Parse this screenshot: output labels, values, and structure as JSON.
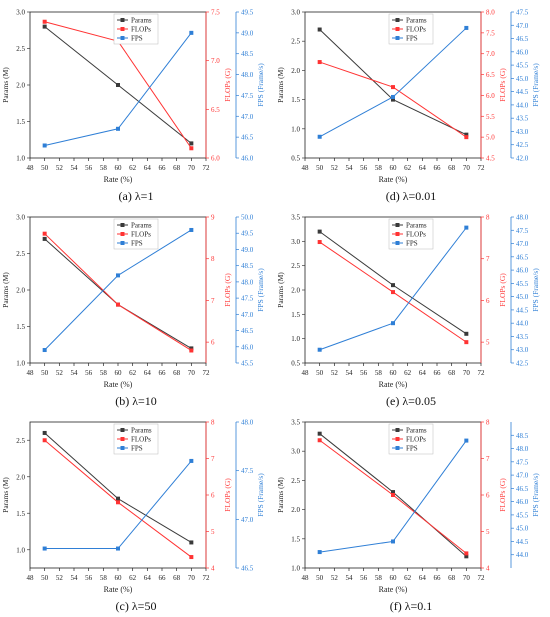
{
  "colors": {
    "params": "#3a3a3a",
    "flops": "#ff3333",
    "fps": "#2f7fd6"
  },
  "chart_data": [
    {
      "type": "line",
      "caption": "(a) λ=1",
      "xlabel": "Rate (%)",
      "x_ticks": [
        48,
        50,
        52,
        54,
        56,
        58,
        60,
        62,
        64,
        66,
        68,
        70,
        72
      ],
      "xlim": [
        48,
        72
      ],
      "axes": [
        {
          "label": "Params (M)",
          "side": "left",
          "color": "params",
          "ylim": [
            1.0,
            3.0
          ],
          "ticks": [
            "1.0",
            "1.5",
            "2.0",
            "2.5",
            "3.0"
          ]
        },
        {
          "label": "FLOPs (G)",
          "side": "right",
          "color": "flops",
          "ylim": [
            6.0,
            7.5
          ],
          "ticks": [
            "6.0",
            "6.5",
            "7.0",
            "7.5"
          ]
        },
        {
          "label": "FPS (Frame/s)",
          "side": "far-right",
          "color": "fps",
          "ylim": [
            46.0,
            49.5
          ],
          "ticks": [
            "46.0",
            "46.5",
            "47.0",
            "47.5",
            "48.0",
            "48.5",
            "49.0",
            "49.5"
          ]
        }
      ],
      "series": [
        {
          "name": "Params",
          "axis": 0,
          "x": [
            50,
            60,
            70
          ],
          "y": [
            2.8,
            2.0,
            1.2
          ]
        },
        {
          "name": "FLOPs",
          "axis": 1,
          "x": [
            50,
            60,
            70
          ],
          "y": [
            7.4,
            7.2,
            6.1
          ]
        },
        {
          "name": "FPS",
          "axis": 2,
          "x": [
            50,
            60,
            70
          ],
          "y": [
            46.3,
            46.7,
            49.0
          ]
        }
      ],
      "legend": "top-center"
    },
    {
      "type": "line",
      "caption": "(d) λ=0.01",
      "xlabel": "Rate (%)",
      "x_ticks": [
        48,
        50,
        52,
        54,
        56,
        58,
        60,
        62,
        64,
        66,
        68,
        70,
        72
      ],
      "xlim": [
        48,
        72
      ],
      "axes": [
        {
          "label": "Params (M)",
          "side": "left",
          "color": "params",
          "ylim": [
            0.5,
            3.0
          ],
          "ticks": [
            "0.5",
            "1.0",
            "1.5",
            "2.0",
            "2.5",
            "3.0"
          ]
        },
        {
          "label": "FLOPs (G)",
          "side": "right",
          "color": "flops",
          "ylim": [
            4.5,
            8.0
          ],
          "ticks": [
            "4.5",
            "5.0",
            "5.5",
            "6.0",
            "6.5",
            "7.0",
            "7.5",
            "8.0"
          ]
        },
        {
          "label": "FPS (Frame/s)",
          "side": "far-right",
          "color": "fps",
          "ylim": [
            42.0,
            47.5
          ],
          "ticks": [
            "42.0",
            "42.5",
            "43.0",
            "43.5",
            "44.0",
            "44.5",
            "45.0",
            "45.5",
            "46.0",
            "46.5",
            "47.0",
            "47.5"
          ]
        }
      ],
      "series": [
        {
          "name": "Params",
          "axis": 0,
          "x": [
            50,
            60,
            70
          ],
          "y": [
            2.7,
            1.5,
            0.9
          ]
        },
        {
          "name": "FLOPs",
          "axis": 1,
          "x": [
            50,
            60,
            70
          ],
          "y": [
            6.8,
            6.2,
            5.0
          ]
        },
        {
          "name": "FPS",
          "axis": 2,
          "x": [
            50,
            60,
            70
          ],
          "y": [
            42.8,
            44.3,
            46.9
          ]
        }
      ],
      "legend": "top-center"
    },
    {
      "type": "line",
      "caption": "(b) λ=10",
      "xlabel": "Rate (%)",
      "x_ticks": [
        48,
        50,
        52,
        54,
        56,
        58,
        60,
        62,
        64,
        66,
        68,
        70,
        72
      ],
      "xlim": [
        48,
        72
      ],
      "axes": [
        {
          "label": "Params (M)",
          "side": "left",
          "color": "params",
          "ylim": [
            1.0,
            3.0
          ],
          "ticks": [
            "1.0",
            "1.5",
            "2.0",
            "2.5",
            "3.0"
          ]
        },
        {
          "label": "FLOPs (G)",
          "side": "right",
          "color": "flops",
          "ylim": [
            5.5,
            9.0
          ],
          "ticks": [
            "6",
            "7",
            "8",
            "9"
          ]
        },
        {
          "label": "FPS (Frame/s)",
          "side": "far-right",
          "color": "fps",
          "ylim": [
            45.5,
            50.0
          ],
          "ticks": [
            "45.5",
            "46.0",
            "46.5",
            "47.0",
            "47.5",
            "48.0",
            "48.5",
            "49.0",
            "49.5",
            "50.0"
          ]
        }
      ],
      "series": [
        {
          "name": "Params",
          "axis": 0,
          "x": [
            50,
            60,
            70
          ],
          "y": [
            2.7,
            1.8,
            1.2
          ]
        },
        {
          "name": "FLOPs",
          "axis": 1,
          "x": [
            50,
            60,
            70
          ],
          "y": [
            8.6,
            6.9,
            5.8
          ]
        },
        {
          "name": "FPS",
          "axis": 2,
          "x": [
            50,
            60,
            70
          ],
          "y": [
            45.9,
            48.2,
            49.6
          ]
        }
      ],
      "legend": "top-center"
    },
    {
      "type": "line",
      "caption": "(e) λ=0.05",
      "xlabel": "Rate (%)",
      "x_ticks": [
        48,
        50,
        52,
        54,
        56,
        58,
        60,
        62,
        64,
        66,
        68,
        70,
        72
      ],
      "xlim": [
        48,
        72
      ],
      "axes": [
        {
          "label": "Params (M)",
          "side": "left",
          "color": "params",
          "ylim": [
            0.5,
            3.5
          ],
          "ticks": [
            "0.5",
            "1.0",
            "1.5",
            "2.0",
            "2.5",
            "3.0",
            "3.5"
          ]
        },
        {
          "label": "FLOPs (G)",
          "side": "right",
          "color": "flops",
          "ylim": [
            4.5,
            8.0
          ],
          "ticks": [
            "5",
            "6",
            "7",
            "8"
          ]
        },
        {
          "label": "FPS (Frame/s)",
          "side": "far-right",
          "color": "fps",
          "ylim": [
            42.5,
            48.0
          ],
          "ticks": [
            "42.5",
            "43.0",
            "43.5",
            "44.0",
            "44.5",
            "45.0",
            "45.5",
            "46.0",
            "46.5",
            "47.0",
            "47.5",
            "48.0"
          ]
        }
      ],
      "series": [
        {
          "name": "Params",
          "axis": 0,
          "x": [
            50,
            60,
            70
          ],
          "y": [
            3.2,
            2.1,
            1.1
          ]
        },
        {
          "name": "FLOPs",
          "axis": 1,
          "x": [
            50,
            60,
            70
          ],
          "y": [
            7.4,
            6.2,
            5.0
          ]
        },
        {
          "name": "FPS",
          "axis": 2,
          "x": [
            50,
            60,
            70
          ],
          "y": [
            43.0,
            44.0,
            47.6
          ]
        }
      ],
      "legend": "top-center"
    },
    {
      "type": "line",
      "caption": "(c) λ=50",
      "xlabel": "Rate (%)",
      "x_ticks": [
        48,
        50,
        52,
        54,
        56,
        58,
        60,
        62,
        64,
        66,
        68,
        70,
        72
      ],
      "xlim": [
        48,
        72
      ],
      "axes": [
        {
          "label": "Params (M)",
          "side": "left",
          "color": "params",
          "ylim": [
            0.75,
            2.75
          ],
          "ticks": [
            "1.0",
            "1.5",
            "2.0",
            "2.5"
          ]
        },
        {
          "label": "FLOPs (G)",
          "side": "right",
          "color": "flops",
          "ylim": [
            4.0,
            8.0
          ],
          "ticks": [
            "4",
            "5",
            "6",
            "7",
            "8"
          ]
        },
        {
          "label": "FPS (Frame/s)",
          "side": "far-right",
          "color": "fps",
          "ylim": [
            46.5,
            48.0
          ],
          "ticks": [
            "46.5",
            "47.0",
            "47.5",
            "48.0"
          ]
        }
      ],
      "series": [
        {
          "name": "Params",
          "axis": 0,
          "x": [
            50,
            60,
            70
          ],
          "y": [
            2.6,
            1.7,
            1.1
          ]
        },
        {
          "name": "FLOPs",
          "axis": 1,
          "x": [
            50,
            60,
            70
          ],
          "y": [
            7.5,
            5.8,
            4.3
          ]
        },
        {
          "name": "FPS",
          "axis": 2,
          "x": [
            50,
            60,
            70
          ],
          "y": [
            46.7,
            46.7,
            47.6
          ]
        }
      ],
      "legend": "top-center"
    },
    {
      "type": "line",
      "caption": "(f) λ=0.1",
      "xlabel": "Rate (%)",
      "x_ticks": [
        48,
        50,
        52,
        54,
        56,
        58,
        60,
        62,
        64,
        66,
        68,
        70,
        72
      ],
      "xlim": [
        48,
        72
      ],
      "axes": [
        {
          "label": "Params (M)",
          "side": "left",
          "color": "params",
          "ylim": [
            1.0,
            3.5
          ],
          "ticks": [
            "1.0",
            "1.5",
            "2.0",
            "2.5",
            "3.0",
            "3.5"
          ]
        },
        {
          "label": "FLOPs (G)",
          "side": "right",
          "color": "flops",
          "ylim": [
            4.0,
            8.0
          ],
          "ticks": [
            "4",
            "5",
            "6",
            "7",
            "8"
          ]
        },
        {
          "label": "FPS (Frame/s)",
          "side": "far-right",
          "color": "fps",
          "ylim": [
            43.5,
            49.0
          ],
          "ticks": [
            "44.0",
            "44.5",
            "45.0",
            "45.5",
            "46.0",
            "46.5",
            "47.0",
            "47.5",
            "48.0",
            "48.5"
          ]
        }
      ],
      "series": [
        {
          "name": "Params",
          "axis": 0,
          "x": [
            50,
            60,
            70
          ],
          "y": [
            3.3,
            2.3,
            1.2
          ]
        },
        {
          "name": "FLOPs",
          "axis": 1,
          "x": [
            50,
            60,
            70
          ],
          "y": [
            7.5,
            6.0,
            4.4
          ]
        },
        {
          "name": "FPS",
          "axis": 2,
          "x": [
            50,
            60,
            70
          ],
          "y": [
            44.1,
            44.5,
            48.3
          ]
        }
      ],
      "legend": "top-center"
    }
  ]
}
